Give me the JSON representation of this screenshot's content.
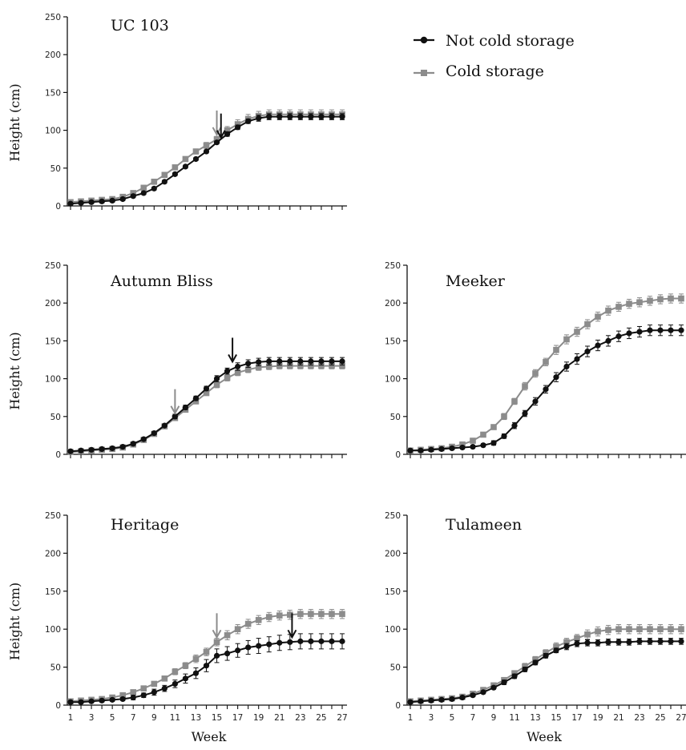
{
  "chart_data": [
    {
      "type": "line",
      "title": "UC 103",
      "ylabel": "Height (cm)",
      "xlabel": "",
      "ylim": [
        0,
        250
      ],
      "yticks": [
        0,
        50,
        100,
        150,
        200,
        250
      ],
      "xlim": [
        1,
        27
      ],
      "xticks": [
        1,
        3,
        5,
        7,
        9,
        11,
        13,
        15,
        17,
        19,
        21,
        23,
        25,
        27
      ],
      "show_xtick_labels": false,
      "legend": "top-right",
      "x": [
        1,
        2,
        3,
        4,
        5,
        6,
        7,
        8,
        9,
        10,
        11,
        12,
        13,
        14,
        15,
        16,
        17,
        18,
        19,
        20,
        21,
        22,
        23,
        24,
        25,
        26,
        27
      ],
      "series": [
        {
          "name": "Not cold storage",
          "color": "#111111",
          "marker": "circle",
          "values": [
            3,
            4,
            5,
            6,
            7,
            9,
            13,
            17,
            23,
            32,
            42,
            52,
            62,
            72,
            84,
            95,
            104,
            112,
            116,
            118,
            118,
            118,
            118,
            118,
            118,
            118,
            118
          ],
          "error": [
            2,
            2,
            2,
            2,
            2,
            2,
            2,
            2,
            2,
            2,
            2,
            2,
            2,
            2,
            2,
            3,
            3,
            3,
            4,
            4,
            4,
            4,
            4,
            4,
            4,
            4,
            4
          ]
        },
        {
          "name": "Cold storage",
          "color": "#8c8c8c",
          "marker": "square",
          "values": [
            5,
            6,
            7,
            8,
            9,
            12,
            17,
            24,
            32,
            41,
            51,
            62,
            72,
            80,
            88,
            100,
            108,
            115,
            119,
            121,
            121,
            121,
            121,
            121,
            121,
            121,
            121
          ],
          "error": [
            2,
            2,
            2,
            2,
            2,
            2,
            2,
            2,
            2,
            3,
            3,
            3,
            3,
            4,
            4,
            5,
            6,
            6,
            6,
            6,
            6,
            6,
            6,
            6,
            6,
            6,
            6
          ]
        }
      ],
      "arrows": [
        {
          "week": 15,
          "series": "Cold storage"
        },
        {
          "week": 15.4,
          "series": "Not cold storage"
        }
      ]
    },
    {
      "type": "line",
      "title": "Autumn Bliss",
      "ylabel": "Height (cm)",
      "xlabel": "",
      "ylim": [
        0,
        250
      ],
      "yticks": [
        0,
        50,
        100,
        150,
        200,
        250
      ],
      "xlim": [
        1,
        27
      ],
      "xticks": [
        1,
        3,
        5,
        7,
        9,
        11,
        13,
        15,
        17,
        19,
        21,
        23,
        25,
        27
      ],
      "show_xtick_labels": false,
      "x": [
        1,
        2,
        3,
        4,
        5,
        6,
        7,
        8,
        9,
        10,
        11,
        12,
        13,
        14,
        15,
        16,
        17,
        18,
        19,
        20,
        21,
        22,
        23,
        24,
        25,
        26,
        27
      ],
      "series": [
        {
          "name": "Not cold storage",
          "color": "#111111",
          "marker": "circle",
          "values": [
            4,
            5,
            6,
            7,
            8,
            10,
            14,
            20,
            28,
            38,
            50,
            62,
            74,
            87,
            100,
            110,
            116,
            120,
            122,
            123,
            123,
            123,
            123,
            123,
            123,
            123,
            123
          ],
          "error": [
            2,
            2,
            2,
            2,
            2,
            2,
            2,
            2,
            2,
            2,
            3,
            3,
            3,
            3,
            4,
            4,
            5,
            5,
            5,
            5,
            5,
            5,
            5,
            5,
            5,
            5,
            5
          ]
        },
        {
          "name": "Cold storage",
          "color": "#8c8c8c",
          "marker": "square",
          "values": [
            3,
            4,
            5,
            6,
            7,
            9,
            13,
            19,
            27,
            37,
            48,
            59,
            70,
            81,
            92,
            101,
            108,
            112,
            115,
            116,
            117,
            117,
            117,
            117,
            117,
            117,
            117
          ],
          "error": [
            2,
            2,
            2,
            2,
            2,
            2,
            2,
            2,
            2,
            3,
            3,
            3,
            3,
            3,
            4,
            4,
            4,
            4,
            4,
            4,
            4,
            4,
            4,
            4,
            4,
            4,
            4
          ]
        }
      ],
      "arrows": [
        {
          "week": 11,
          "series": "Cold storage"
        },
        {
          "week": 16.5,
          "series": "Not cold storage"
        }
      ]
    },
    {
      "type": "line",
      "title": "Meeker",
      "ylabel": "",
      "xlabel": "",
      "ylim": [
        0,
        250
      ],
      "yticks": [
        0,
        50,
        100,
        150,
        200,
        250
      ],
      "xlim": [
        1,
        27
      ],
      "xticks": [
        1,
        3,
        5,
        7,
        9,
        11,
        13,
        15,
        17,
        19,
        21,
        23,
        25,
        27
      ],
      "show_xtick_labels": false,
      "x": [
        1,
        2,
        3,
        4,
        5,
        6,
        7,
        8,
        9,
        10,
        11,
        12,
        13,
        14,
        15,
        16,
        17,
        18,
        19,
        20,
        21,
        22,
        23,
        24,
        25,
        26,
        27
      ],
      "series": [
        {
          "name": "Not cold storage",
          "color": "#111111",
          "marker": "circle",
          "values": [
            5,
            5,
            6,
            7,
            8,
            9,
            10,
            12,
            15,
            24,
            38,
            54,
            70,
            86,
            102,
            116,
            126,
            136,
            144,
            150,
            156,
            160,
            162,
            164,
            164,
            164,
            164
          ],
          "error": [
            2,
            2,
            2,
            2,
            2,
            2,
            2,
            2,
            3,
            3,
            4,
            4,
            5,
            5,
            6,
            6,
            7,
            7,
            7,
            7,
            7,
            7,
            7,
            7,
            7,
            7,
            7
          ]
        },
        {
          "name": "Cold storage",
          "color": "#8c8c8c",
          "marker": "square",
          "values": [
            5,
            6,
            7,
            8,
            10,
            13,
            18,
            26,
            36,
            50,
            70,
            90,
            107,
            122,
            138,
            152,
            162,
            172,
            182,
            190,
            195,
            199,
            201,
            203,
            205,
            206,
            206
          ],
          "error": [
            2,
            2,
            2,
            2,
            2,
            2,
            2,
            3,
            3,
            4,
            4,
            5,
            5,
            5,
            6,
            6,
            6,
            6,
            6,
            6,
            6,
            6,
            6,
            6,
            6,
            6,
            6
          ]
        }
      ]
    },
    {
      "type": "line",
      "title": "Heritage",
      "ylabel": "Height (cm)",
      "xlabel": "Week",
      "ylim": [
        0,
        250
      ],
      "yticks": [
        0,
        50,
        100,
        150,
        200,
        250
      ],
      "xlim": [
        1,
        27
      ],
      "xticks": [
        1,
        3,
        5,
        7,
        9,
        11,
        13,
        15,
        17,
        19,
        21,
        23,
        25,
        27
      ],
      "show_xtick_labels": true,
      "x": [
        1,
        2,
        3,
        4,
        5,
        6,
        7,
        8,
        9,
        10,
        11,
        12,
        13,
        14,
        15,
        16,
        17,
        18,
        19,
        20,
        21,
        22,
        23,
        24,
        25,
        26,
        27
      ],
      "series": [
        {
          "name": "Not cold storage",
          "color": "#111111",
          "marker": "circle",
          "values": [
            4,
            4,
            5,
            6,
            7,
            8,
            10,
            13,
            17,
            22,
            28,
            35,
            42,
            52,
            65,
            68,
            72,
            76,
            78,
            80,
            82,
            83,
            84,
            84,
            84,
            84,
            84
          ],
          "error": [
            2,
            2,
            2,
            2,
            2,
            2,
            3,
            3,
            4,
            4,
            5,
            6,
            7,
            8,
            9,
            9,
            9,
            9,
            10,
            10,
            10,
            10,
            10,
            10,
            10,
            10,
            10
          ]
        },
        {
          "name": "Cold storage",
          "color": "#8c8c8c",
          "marker": "square",
          "values": [
            5,
            6,
            7,
            8,
            10,
            13,
            17,
            22,
            28,
            35,
            44,
            52,
            61,
            70,
            83,
            92,
            100,
            107,
            112,
            116,
            118,
            119,
            120,
            120,
            120,
            120,
            120
          ],
          "error": [
            2,
            2,
            2,
            2,
            2,
            2,
            2,
            3,
            3,
            3,
            4,
            4,
            5,
            5,
            5,
            6,
            6,
            6,
            6,
            6,
            6,
            6,
            6,
            6,
            6,
            6,
            6
          ]
        }
      ],
      "arrows": [
        {
          "week": 15,
          "series": "Cold storage"
        },
        {
          "week": 22.2,
          "series": "Not cold storage"
        }
      ]
    },
    {
      "type": "line",
      "title": "Tulameen",
      "ylabel": "",
      "xlabel": "Week",
      "ylim": [
        0,
        250
      ],
      "yticks": [
        0,
        50,
        100,
        150,
        200,
        250
      ],
      "xlim": [
        1,
        27
      ],
      "xticks": [
        1,
        3,
        5,
        7,
        9,
        11,
        13,
        15,
        17,
        19,
        21,
        23,
        25,
        27
      ],
      "show_xtick_labels": true,
      "x": [
        1,
        2,
        3,
        4,
        5,
        6,
        7,
        8,
        9,
        10,
        11,
        12,
        13,
        14,
        15,
        16,
        17,
        18,
        19,
        20,
        21,
        22,
        23,
        24,
        25,
        26,
        27
      ],
      "series": [
        {
          "name": "Not cold storage",
          "color": "#111111",
          "marker": "circle",
          "values": [
            4,
            5,
            6,
            7,
            8,
            10,
            13,
            17,
            23,
            30,
            38,
            47,
            56,
            65,
            72,
            77,
            81,
            82,
            82,
            83,
            83,
            83,
            84,
            84,
            84,
            84,
            84
          ],
          "error": [
            2,
            2,
            2,
            2,
            2,
            2,
            2,
            2,
            2,
            3,
            3,
            3,
            3,
            3,
            3,
            4,
            4,
            4,
            4,
            4,
            4,
            4,
            4,
            4,
            4,
            4,
            4
          ]
        },
        {
          "name": "Cold storage",
          "color": "#8c8c8c",
          "marker": "square",
          "values": [
            5,
            6,
            7,
            8,
            9,
            11,
            15,
            20,
            26,
            33,
            42,
            51,
            60,
            69,
            77,
            83,
            88,
            93,
            97,
            99,
            100,
            100,
            100,
            100,
            100,
            100,
            100
          ],
          "error": [
            2,
            2,
            2,
            2,
            2,
            2,
            2,
            2,
            3,
            3,
            3,
            4,
            4,
            4,
            5,
            5,
            5,
            6,
            6,
            6,
            6,
            6,
            6,
            6,
            6,
            6,
            6
          ]
        }
      ]
    }
  ],
  "legend": {
    "items": [
      {
        "label": "Not cold storage",
        "color": "#111111",
        "marker": "circle"
      },
      {
        "label": "Cold storage",
        "color": "#8c8c8c",
        "marker": "square"
      }
    ]
  }
}
